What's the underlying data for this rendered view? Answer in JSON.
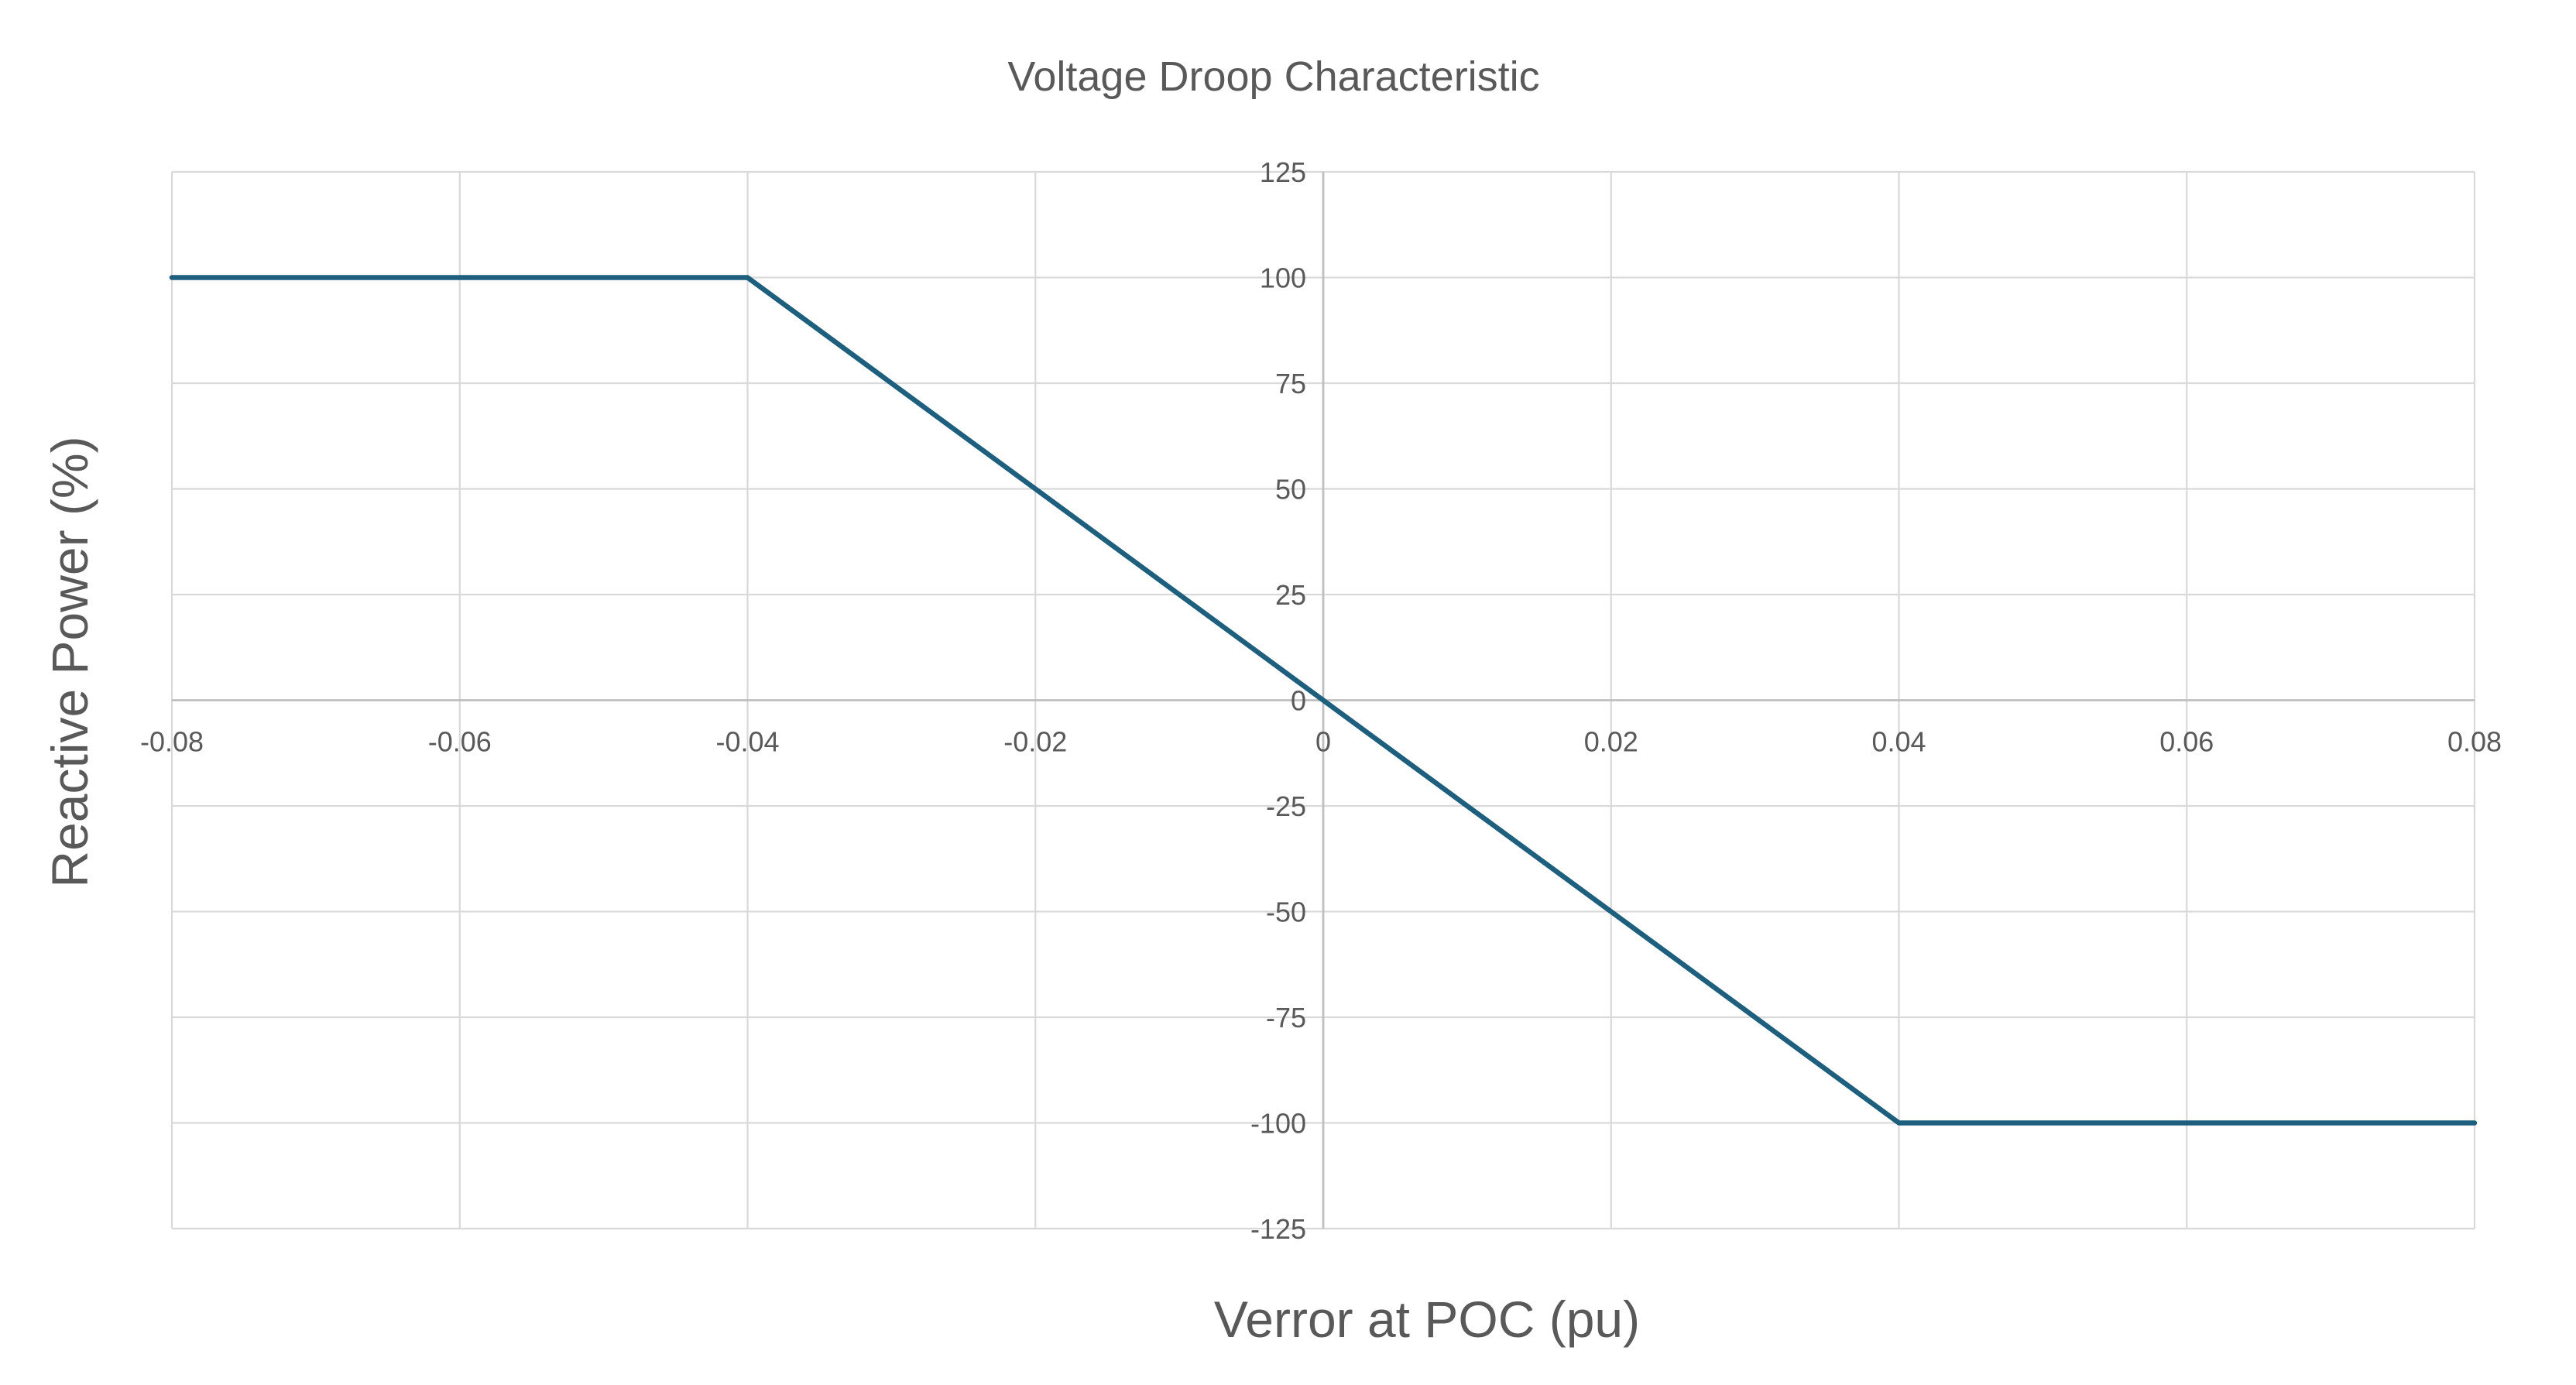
{
  "chart_data": {
    "type": "line",
    "title": "Voltage Droop Characteristic",
    "xlabel": "Verror at POC (pu)",
    "ylabel": "Reactive Power (%)",
    "xlim": [
      -0.08,
      0.08
    ],
    "ylim": [
      -125,
      125
    ],
    "xticks": [
      -0.08,
      -0.06,
      -0.04,
      -0.02,
      0,
      0.02,
      0.04,
      0.06,
      0.08
    ],
    "xtick_labels": [
      "-0.08",
      "-0.06",
      "-0.04",
      "-0.02",
      "0",
      "0.02",
      "0.04",
      "0.06",
      "0.08"
    ],
    "yticks": [
      125,
      100,
      75,
      50,
      25,
      0,
      -25,
      -50,
      -75,
      -100,
      -125
    ],
    "ytick_labels": [
      "125",
      "100",
      "75",
      "50",
      "25",
      "0",
      "-25",
      "-50",
      "-75",
      "-100",
      "-125"
    ],
    "grid": true,
    "legend": "none",
    "series": [
      {
        "color": "#1f5f7e",
        "points": [
          {
            "x": -0.08,
            "y": 100
          },
          {
            "x": -0.04,
            "y": 100
          },
          {
            "x": 0.04,
            "y": -100
          },
          {
            "x": 0.08,
            "y": -100
          }
        ]
      }
    ]
  }
}
